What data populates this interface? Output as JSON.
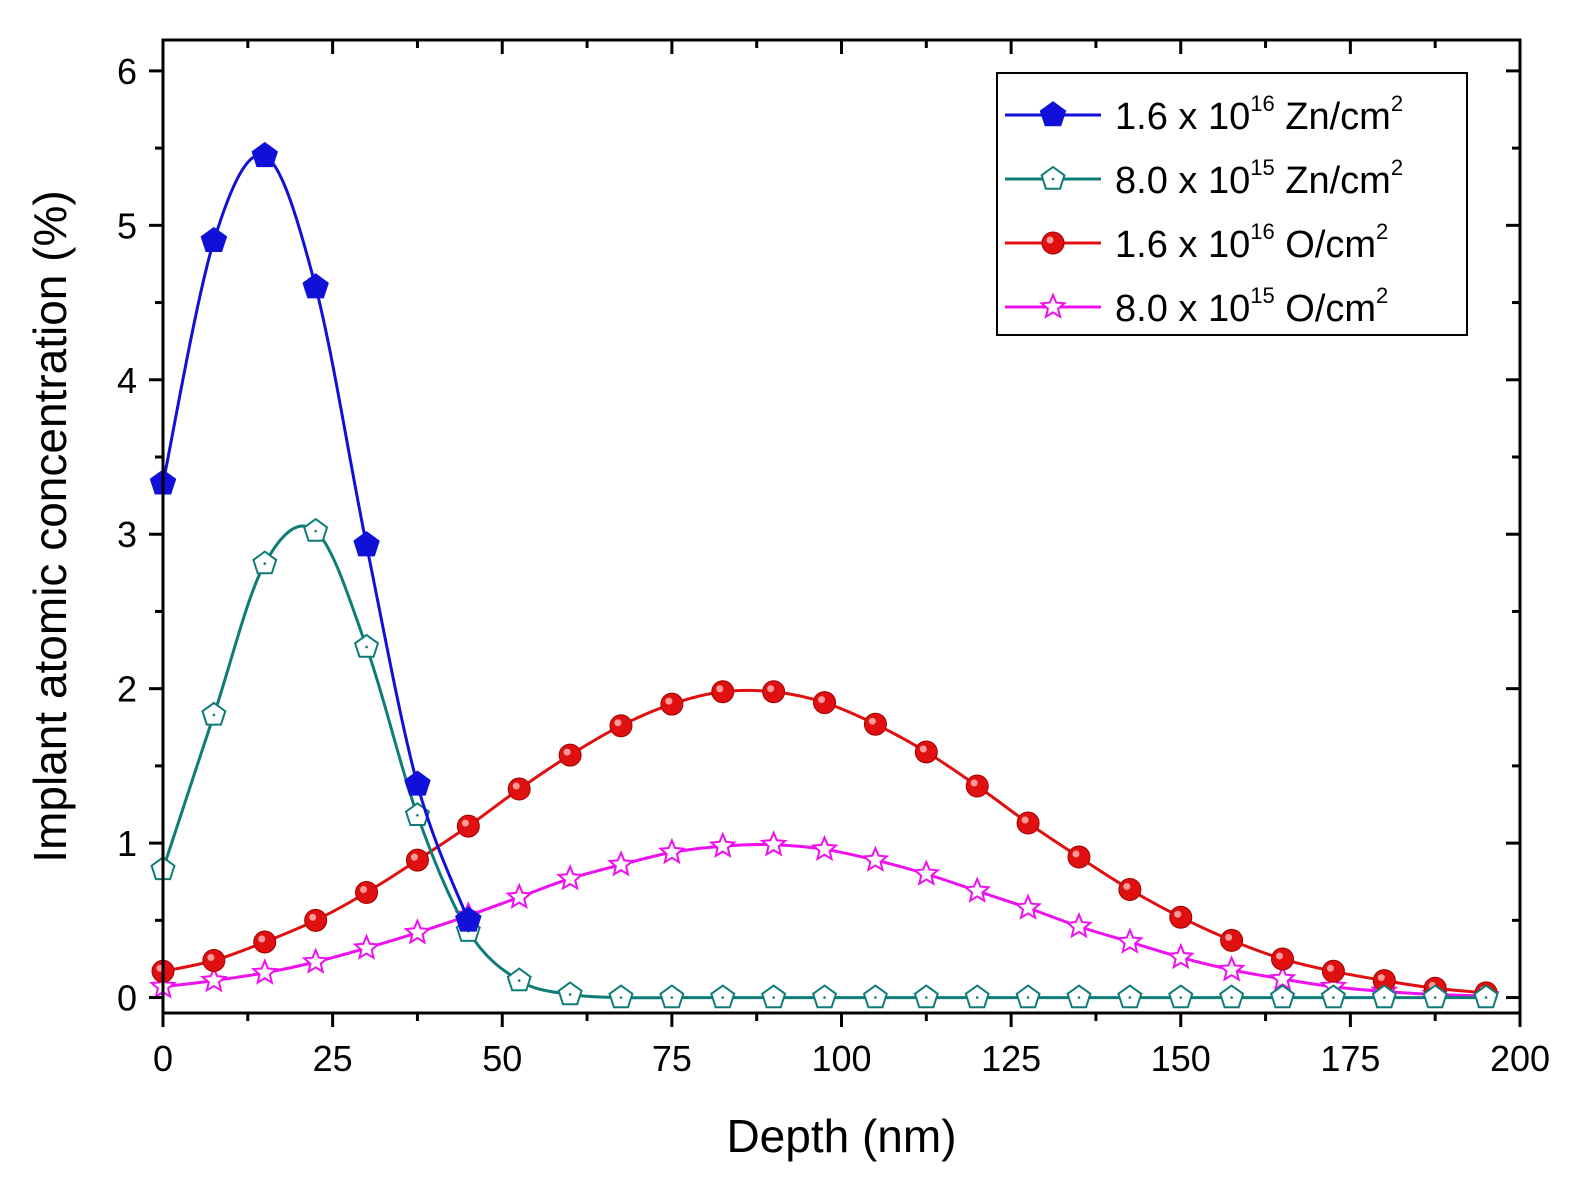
{
  "chart_data": {
    "type": "line",
    "xlabel": "Depth (nm)",
    "ylabel": "Implant atomic concentration (%)",
    "xlim": [
      0,
      200
    ],
    "ylim": [
      -0.1,
      6.2
    ],
    "xticks": [
      0,
      25,
      50,
      75,
      100,
      125,
      150,
      175,
      200
    ],
    "yticks": [
      0,
      1,
      2,
      3,
      4,
      5,
      6
    ],
    "grid": false,
    "legend_position": "top-right",
    "series": [
      {
        "name": "1.6 x 10^16 Zn/cm^2",
        "legend": {
          "pre": "1.6 x 10",
          "exp": "16",
          "unit": " Zn/cm",
          "unit_exp": "2"
        },
        "color": "#1010d8",
        "marker": "pentagon-filled",
        "x": [
          0,
          7.5,
          15,
          22.5,
          30,
          37.5,
          45
        ],
        "y": [
          3.33,
          4.9,
          5.45,
          4.6,
          2.93,
          1.38,
          0.5
        ]
      },
      {
        "name": "8.0 x 10^15 Zn/cm^2",
        "legend": {
          "pre": "8.0 x 10",
          "exp": "15",
          "unit": " Zn/cm",
          "unit_exp": "2"
        },
        "color": "#0e7c77",
        "marker": "pentagon-open",
        "x": [
          0,
          7.5,
          15,
          22.5,
          30,
          37.5,
          45,
          52.5,
          60,
          67.5,
          75,
          82.5,
          90,
          97.5,
          105,
          112.5,
          120,
          127.5,
          135,
          142.5,
          150,
          157.5,
          165,
          172.5,
          180,
          187.5,
          195
        ],
        "y": [
          0.83,
          1.83,
          2.81,
          3.02,
          2.27,
          1.18,
          0.43,
          0.11,
          0.02,
          0.0,
          0.0,
          0.0,
          0.0,
          0.0,
          0.0,
          0.0,
          0.0,
          0.0,
          0.0,
          0.0,
          0.0,
          0.0,
          0.0,
          0.0,
          0.0,
          0.0,
          0.0
        ]
      },
      {
        "name": "1.6 x 10^16 O/cm^2",
        "legend": {
          "pre": "1.6 x 10",
          "exp": "16",
          "unit": " O/cm",
          "unit_exp": "2"
        },
        "color": "#e01010",
        "marker": "circle-filled",
        "x": [
          0,
          7.5,
          15,
          22.5,
          30,
          37.5,
          45,
          52.5,
          60,
          67.5,
          75,
          82.5,
          90,
          97.5,
          105,
          112.5,
          120,
          127.5,
          135,
          142.5,
          150,
          157.5,
          165,
          172.5,
          180,
          187.5,
          195
        ],
        "y": [
          0.17,
          0.24,
          0.36,
          0.5,
          0.68,
          0.89,
          1.11,
          1.35,
          1.57,
          1.76,
          1.9,
          1.98,
          1.98,
          1.91,
          1.77,
          1.59,
          1.37,
          1.13,
          0.91,
          0.7,
          0.52,
          0.37,
          0.25,
          0.17,
          0.11,
          0.06,
          0.03
        ]
      },
      {
        "name": "8.0 x 10^15 O/cm^2",
        "legend": {
          "pre": "8.0 x 10",
          "exp": "15",
          "unit": " O/cm",
          "unit_exp": "2"
        },
        "color": "#ee10ee",
        "marker": "star-open",
        "x": [
          0,
          7.5,
          15,
          22.5,
          30,
          37.5,
          45,
          52.5,
          60,
          67.5,
          75,
          82.5,
          90,
          97.5,
          105,
          112.5,
          120,
          127.5,
          135,
          142.5,
          150,
          157.5,
          165,
          172.5,
          180,
          187.5,
          195
        ],
        "y": [
          0.07,
          0.11,
          0.16,
          0.23,
          0.32,
          0.42,
          0.53,
          0.65,
          0.77,
          0.86,
          0.94,
          0.98,
          0.99,
          0.96,
          0.89,
          0.8,
          0.69,
          0.58,
          0.46,
          0.36,
          0.26,
          0.18,
          0.12,
          0.07,
          0.04,
          0.02,
          0.01
        ]
      }
    ]
  }
}
